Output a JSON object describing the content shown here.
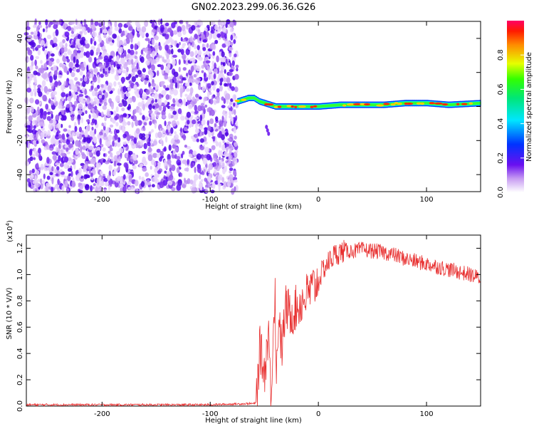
{
  "title": "GN02.2023.299.06.36.G26",
  "chart_data": [
    {
      "type": "heatmap",
      "xlabel": "Height of straight line (km)",
      "ylabel": "Frequency (Hz)",
      "xlim": [
        -270,
        150
      ],
      "ylim": [
        -50,
        50
      ],
      "xticks": [
        -200,
        -100,
        0,
        100
      ],
      "yticks": [
        -40,
        -20,
        0,
        20,
        40
      ],
      "noise_region_x": [
        -270,
        -75
      ],
      "signal_track": {
        "x": [
          -75,
          -70,
          -65,
          -60,
          -55,
          -50,
          -45,
          -40,
          -30,
          -20,
          -10,
          0,
          20,
          40,
          60,
          80,
          100,
          120,
          150
        ],
        "y": [
          3,
          4,
          5,
          5,
          3,
          2,
          1,
          0,
          0,
          0,
          0,
          0,
          1,
          1,
          1,
          2,
          2,
          1,
          2
        ]
      },
      "colorbar": {
        "label": "Normalized spectral amplitude",
        "range": [
          0.0,
          1.0
        ],
        "ticks": [
          "0.0",
          "0.2",
          "0.4",
          "0.6",
          "0.8"
        ],
        "tick_values": [
          0.0,
          0.2,
          0.4,
          0.6,
          0.8
        ]
      }
    },
    {
      "type": "line",
      "xlabel": "Height of straight line (km)",
      "ylabel": "SNR (10 * V/V)",
      "y_multiplier": "(x10",
      "y_multiplier_exp": "4",
      "y_multiplier_close": ")",
      "xlim": [
        -270,
        150
      ],
      "ylim": [
        0.0,
        1.3
      ],
      "xticks": [
        -200,
        -100,
        0,
        100
      ],
      "yticks": [
        "0.0",
        "0.2",
        "0.4",
        "0.6",
        "0.8",
        "1.0",
        "1.2"
      ],
      "ytick_values": [
        0.0,
        0.2,
        0.4,
        0.6,
        0.8,
        1.0,
        1.2
      ],
      "color": "#e83030",
      "series": [
        {
          "x": [
            -270,
            -100,
            -58,
            -56,
            -54,
            -52,
            -50,
            -48,
            -46,
            -44,
            -42,
            -40,
            -39,
            -38,
            -36,
            -34,
            -32,
            -30,
            -25,
            -20,
            -15,
            -10,
            -5,
            0,
            5,
            10,
            15,
            20,
            25,
            30,
            35,
            40,
            50,
            60,
            70,
            80,
            90,
            100,
            110,
            120,
            130,
            140,
            150
          ],
          "values": [
            0.01,
            0.01,
            0.02,
            0.2,
            0.45,
            0.35,
            0.25,
            0.4,
            0.6,
            0.05,
            0.5,
            0.95,
            0.05,
            0.5,
            0.7,
            0.4,
            0.6,
            0.75,
            0.7,
            0.75,
            0.8,
            0.85,
            0.9,
            0.95,
            1.05,
            1.1,
            1.15,
            1.17,
            1.18,
            1.18,
            1.18,
            1.19,
            1.18,
            1.17,
            1.15,
            1.12,
            1.1,
            1.08,
            1.06,
            1.04,
            1.02,
            1.0,
            0.97
          ]
        }
      ]
    }
  ]
}
